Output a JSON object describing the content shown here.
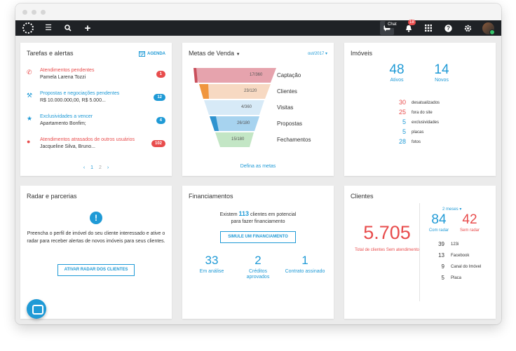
{
  "topbar": {
    "notifications_count": "18",
    "tooltip": "Chat"
  },
  "tarefas": {
    "title": "Tarefas e alertas",
    "agenda_label": "AGENDA",
    "items": [
      {
        "title": "Atendimentos pendentes",
        "subtitle": "Pamela Larena Tozzi",
        "count": "1",
        "color": "#e84c4c"
      },
      {
        "title": "Propostas e negociações pendentes",
        "subtitle": "R$ 10.000.000,00, R$ 5.000...",
        "count": "12",
        "color": "#1f9ad6"
      },
      {
        "title": "Exclusividades a vencer",
        "subtitle": "Apartamento Bonfim;",
        "count": "4",
        "color": "#1f9ad6"
      },
      {
        "title": "Atendimentos atrasados de outros usuários",
        "subtitle": "Jacqueline Silva, Bruno...",
        "count": "102",
        "color": "#e84c4c"
      }
    ],
    "pager": {
      "prev": "‹",
      "page1": "1",
      "page2": "2",
      "next": "›"
    }
  },
  "metas": {
    "title": "Metas de Venda",
    "month": "out/2017",
    "stages": [
      {
        "label": "Captação",
        "value": "17/360",
        "color": "#e6a3ad"
      },
      {
        "label": "Clientes",
        "value": "23/120",
        "color": "#f7d9c2"
      },
      {
        "label": "Visitas",
        "value": "4/360",
        "color": "#d7eaf7"
      },
      {
        "label": "Propostas",
        "value": "26/180",
        "color": "#a7d3ef"
      },
      {
        "label": "Fechamentos",
        "value": "15/180",
        "color": "#c3e6c5"
      }
    ],
    "link": "Defina as metas"
  },
  "imoveis": {
    "title": "Imóveis",
    "ativos": {
      "value": "48",
      "label": "Ativos"
    },
    "novos": {
      "value": "14",
      "label": "Novos"
    },
    "rows": [
      {
        "value": "30",
        "label": "desatualizados",
        "color": "#e84c4c"
      },
      {
        "value": "25",
        "label": "fora do site",
        "color": "#e84c4c"
      },
      {
        "value": "5",
        "label": "exclusividades",
        "color": "#1f9ad6"
      },
      {
        "value": "5",
        "label": "placas",
        "color": "#1f9ad6"
      },
      {
        "value": "28",
        "label": "fotos",
        "color": "#1f9ad6"
      }
    ]
  },
  "radar": {
    "title": "Radar e parcerias",
    "text": "Preencha o perfil de imóvel do seu cliente interessado e ative o radar para receber alertas de novos imóveis para seus clientes.",
    "button": "ATIVAR RADAR DOS CLIENTES"
  },
  "financiamentos": {
    "title": "Financiamentos",
    "text_before": "Existem",
    "count": "113",
    "text_after": "clientes em potencial",
    "text_line2": "para fazer financiamento",
    "button": "SIMULE UM FINANCIAMENTO",
    "stats": [
      {
        "value": "33",
        "label": "Em análise"
      },
      {
        "value": "2",
        "label": "Créditos aprovados"
      },
      {
        "value": "1",
        "label": "Contrato assinado"
      }
    ]
  },
  "clientes": {
    "title": "Clientes",
    "total": "5.705",
    "total_label": "Total de clientes Sem atendimento",
    "period": "2 meses",
    "com_radar": {
      "value": "84",
      "label": "Com radar"
    },
    "sem_radar": {
      "value": "42",
      "label": "Sem radar"
    },
    "sources": [
      {
        "value": "39",
        "label": "123i"
      },
      {
        "value": "13",
        "label": "Facebook"
      },
      {
        "value": "9",
        "label": "Canal do Imóvel"
      },
      {
        "value": "5",
        "label": "Placa"
      }
    ]
  }
}
